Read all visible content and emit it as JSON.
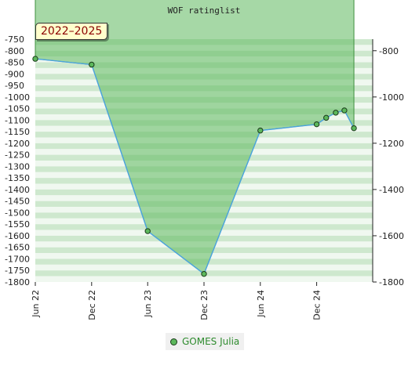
{
  "chart_data": {
    "type": "area",
    "title": "WOF ratinglist",
    "range_label": "2022–2025",
    "x_ticks": [
      "Jun 22",
      "Dec 22",
      "Jun 23",
      "Dec 23",
      "Jun 24",
      "Dec 24"
    ],
    "x_range": [
      "2022-06",
      "2025-06"
    ],
    "y_left_ticks": [
      "-750",
      "-800",
      "-850",
      "-900",
      "-950",
      "-1000",
      "-1050",
      "-1100",
      "-1150",
      "-1200",
      "-1250",
      "-1300",
      "-1350",
      "-1400",
      "-1450",
      "-1500",
      "-1550",
      "-1600",
      "-1650",
      "-1700",
      "-1750",
      "-1800"
    ],
    "y_right_ticks": [
      "-800",
      "-1000",
      "-1200",
      "-1400",
      "-1600",
      "-1800"
    ],
    "ylim": [
      -1800,
      -750
    ],
    "series": [
      {
        "name": "GOMES Julia",
        "points": [
          {
            "x": "2022-06",
            "y": -835
          },
          {
            "x": "2022-12",
            "y": -860
          },
          {
            "x": "2023-06",
            "y": -1580
          },
          {
            "x": "2023-12",
            "y": -1765
          },
          {
            "x": "2024-06",
            "y": -1145
          },
          {
            "x": "2024-12",
            "y": -1118
          },
          {
            "x": "2025-01",
            "y": -1090
          },
          {
            "x": "2025-02",
            "y": -1068
          },
          {
            "x": "2025-03",
            "y": -1058
          },
          {
            "x": "2025-04",
            "y": -1135
          }
        ]
      }
    ],
    "colors": {
      "area_fill": "#5cb85c",
      "line": "#4aa3df",
      "marker_fill": "#5cb85c",
      "band_dark": "#a6d6a6",
      "band_light": "#eef7ee"
    },
    "legend_position": "bottom"
  }
}
